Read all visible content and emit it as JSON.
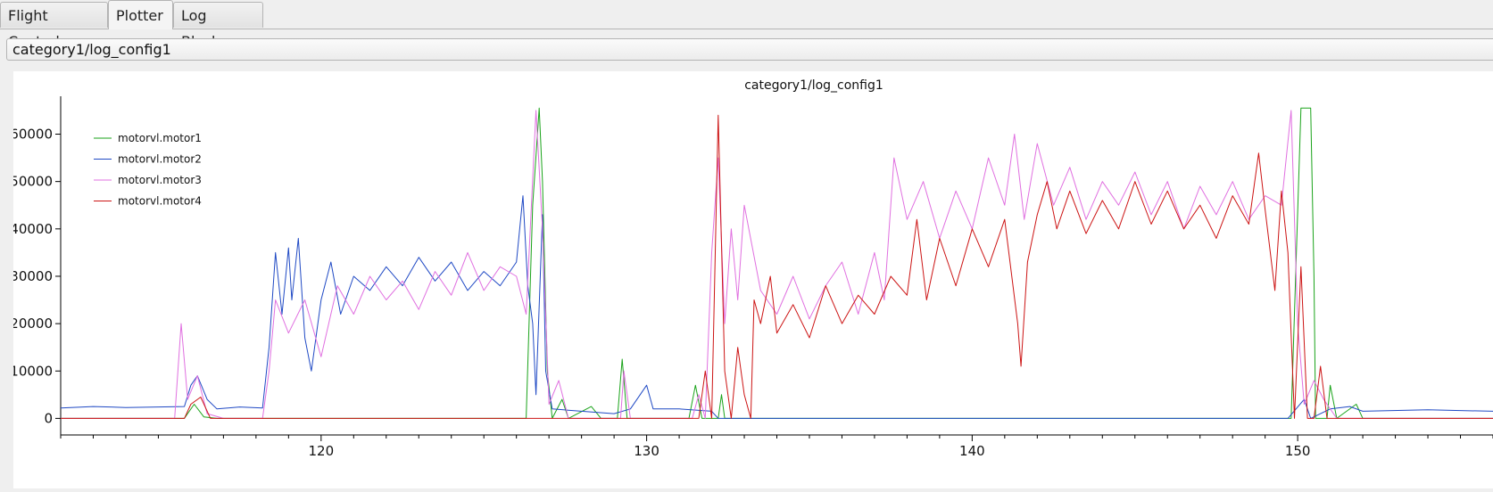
{
  "tabs": [
    {
      "label": "Flight Control",
      "active": false
    },
    {
      "label": "Plotter",
      "active": true
    },
    {
      "label": "Log Blocks",
      "active": false
    }
  ],
  "selector": {
    "value": "category1/log_config1"
  },
  "chart_data": {
    "type": "line",
    "title": "category1/log_config1",
    "xlabel": "",
    "ylabel": "",
    "xlim": [
      112,
      156
    ],
    "ylim": [
      -3500,
      68000
    ],
    "x_ticks": [
      120,
      130,
      140,
      150
    ],
    "y_ticks": [
      0,
      10000,
      20000,
      30000,
      40000,
      50000,
      60000
    ],
    "legend_position": "top-left",
    "grid": false,
    "series": [
      {
        "name": "motorvl.motor1",
        "color": "#1aa31a",
        "points": [
          [
            112,
            0
          ],
          [
            115.8,
            0
          ],
          [
            116.1,
            3000
          ],
          [
            116.4,
            300
          ],
          [
            116.8,
            0
          ],
          [
            126.3,
            0
          ],
          [
            126.5,
            45000
          ],
          [
            126.7,
            65500
          ],
          [
            126.8,
            50000
          ],
          [
            126.95,
            10000
          ],
          [
            127.1,
            0
          ],
          [
            127.4,
            4000
          ],
          [
            127.6,
            0
          ],
          [
            128.3,
            2500
          ],
          [
            128.6,
            0
          ],
          [
            129.1,
            0
          ],
          [
            129.25,
            12500
          ],
          [
            129.4,
            0
          ],
          [
            131.3,
            0
          ],
          [
            131.5,
            7000
          ],
          [
            131.7,
            0
          ],
          [
            132.2,
            0
          ],
          [
            132.3,
            5000
          ],
          [
            132.4,
            0
          ],
          [
            149.8,
            0
          ],
          [
            150.1,
            65500
          ],
          [
            150.4,
            65500
          ],
          [
            150.5,
            30000
          ],
          [
            150.55,
            0
          ],
          [
            150.9,
            0
          ],
          [
            151.0,
            7000
          ],
          [
            151.2,
            0
          ],
          [
            151.8,
            3000
          ],
          [
            152.0,
            0
          ],
          [
            156,
            0
          ]
        ]
      },
      {
        "name": "motorvl.motor2",
        "color": "#1f49c4",
        "points": [
          [
            112,
            2200
          ],
          [
            113,
            2500
          ],
          [
            114,
            2300
          ],
          [
            115,
            2400
          ],
          [
            115.8,
            2500
          ],
          [
            116.0,
            7000
          ],
          [
            116.2,
            9000
          ],
          [
            116.5,
            4000
          ],
          [
            116.8,
            2000
          ],
          [
            117.5,
            2400
          ],
          [
            118.2,
            2200
          ],
          [
            118.4,
            15000
          ],
          [
            118.6,
            35000
          ],
          [
            118.8,
            22000
          ],
          [
            119.0,
            36000
          ],
          [
            119.1,
            25000
          ],
          [
            119.3,
            38000
          ],
          [
            119.5,
            17000
          ],
          [
            119.7,
            10000
          ],
          [
            120.0,
            25000
          ],
          [
            120.3,
            33000
          ],
          [
            120.6,
            22000
          ],
          [
            121.0,
            30000
          ],
          [
            121.5,
            27000
          ],
          [
            122.0,
            32000
          ],
          [
            122.5,
            28000
          ],
          [
            123.0,
            34000
          ],
          [
            123.5,
            29000
          ],
          [
            124.0,
            33000
          ],
          [
            124.5,
            27000
          ],
          [
            125.0,
            31000
          ],
          [
            125.5,
            28000
          ],
          [
            126.0,
            33000
          ],
          [
            126.2,
            47000
          ],
          [
            126.35,
            28000
          ],
          [
            126.5,
            20000
          ],
          [
            126.6,
            5000
          ],
          [
            126.8,
            43000
          ],
          [
            126.9,
            10000
          ],
          [
            127.1,
            2000
          ],
          [
            128.0,
            1500
          ],
          [
            129.0,
            1000
          ],
          [
            129.5,
            2000
          ],
          [
            130.0,
            7000
          ],
          [
            130.2,
            2000
          ],
          [
            131.0,
            2000
          ],
          [
            132.0,
            1500
          ],
          [
            132.2,
            0
          ],
          [
            149.7,
            0
          ],
          [
            150.2,
            4000
          ],
          [
            150.4,
            0
          ],
          [
            151.0,
            2000
          ],
          [
            151.6,
            2500
          ],
          [
            152,
            1500
          ],
          [
            154,
            1800
          ],
          [
            156,
            1500
          ]
        ]
      },
      {
        "name": "motorvl.motor3",
        "color": "#e070e0",
        "points": [
          [
            112,
            0
          ],
          [
            115.5,
            0
          ],
          [
            115.7,
            20000
          ],
          [
            115.9,
            4000
          ],
          [
            116.2,
            9000
          ],
          [
            116.5,
            1000
          ],
          [
            117,
            0
          ],
          [
            118.2,
            0
          ],
          [
            118.4,
            10000
          ],
          [
            118.6,
            25000
          ],
          [
            119.0,
            18000
          ],
          [
            119.5,
            25000
          ],
          [
            120.0,
            13000
          ],
          [
            120.5,
            28000
          ],
          [
            121.0,
            22000
          ],
          [
            121.5,
            30000
          ],
          [
            122.0,
            25000
          ],
          [
            122.5,
            29000
          ],
          [
            123.0,
            23000
          ],
          [
            123.5,
            31000
          ],
          [
            124.0,
            26000
          ],
          [
            124.5,
            35000
          ],
          [
            125.0,
            27000
          ],
          [
            125.5,
            32000
          ],
          [
            126.0,
            30000
          ],
          [
            126.3,
            22000
          ],
          [
            126.6,
            65000
          ],
          [
            126.8,
            40000
          ],
          [
            127.0,
            3000
          ],
          [
            127.3,
            8000
          ],
          [
            127.6,
            0
          ],
          [
            129.2,
            0
          ],
          [
            129.3,
            10000
          ],
          [
            129.5,
            0
          ],
          [
            131.4,
            0
          ],
          [
            131.6,
            5000
          ],
          [
            131.8,
            0
          ],
          [
            132.0,
            35000
          ],
          [
            132.2,
            55000
          ],
          [
            132.4,
            20000
          ],
          [
            132.6,
            40000
          ],
          [
            132.8,
            25000
          ],
          [
            133.0,
            45000
          ],
          [
            133.5,
            27000
          ],
          [
            134.0,
            22000
          ],
          [
            134.5,
            30000
          ],
          [
            135.0,
            21000
          ],
          [
            135.5,
            28000
          ],
          [
            136.0,
            33000
          ],
          [
            136.5,
            22000
          ],
          [
            137.0,
            35000
          ],
          [
            137.3,
            25000
          ],
          [
            137.6,
            55000
          ],
          [
            138.0,
            42000
          ],
          [
            138.5,
            50000
          ],
          [
            139.0,
            38000
          ],
          [
            139.5,
            48000
          ],
          [
            140.0,
            40000
          ],
          [
            140.5,
            55000
          ],
          [
            141.0,
            45000
          ],
          [
            141.3,
            60000
          ],
          [
            141.6,
            42000
          ],
          [
            142.0,
            58000
          ],
          [
            142.5,
            45000
          ],
          [
            143.0,
            53000
          ],
          [
            143.5,
            42000
          ],
          [
            144.0,
            50000
          ],
          [
            144.5,
            45000
          ],
          [
            145.0,
            52000
          ],
          [
            145.5,
            43000
          ],
          [
            146.0,
            50000
          ],
          [
            146.5,
            40000
          ],
          [
            147.0,
            49000
          ],
          [
            147.5,
            43000
          ],
          [
            148.0,
            50000
          ],
          [
            148.5,
            42000
          ],
          [
            149.0,
            47000
          ],
          [
            149.5,
            45000
          ],
          [
            149.8,
            65000
          ],
          [
            150.0,
            20000
          ],
          [
            150.2,
            3000
          ],
          [
            150.5,
            8000
          ],
          [
            150.8,
            4000
          ],
          [
            151.2,
            0
          ],
          [
            156,
            0
          ]
        ]
      },
      {
        "name": "motorvl.motor4",
        "color": "#cc1414",
        "points": [
          [
            112,
            0
          ],
          [
            115.8,
            0
          ],
          [
            116.0,
            3000
          ],
          [
            116.3,
            4500
          ],
          [
            116.6,
            0
          ],
          [
            131.6,
            0
          ],
          [
            131.8,
            10000
          ],
          [
            132.0,
            0
          ],
          [
            132.2,
            64000
          ],
          [
            132.4,
            10000
          ],
          [
            132.6,
            0
          ],
          [
            132.8,
            15000
          ],
          [
            133.0,
            5000
          ],
          [
            133.2,
            0
          ],
          [
            133.3,
            25000
          ],
          [
            133.5,
            20000
          ],
          [
            133.8,
            30000
          ],
          [
            134.0,
            18000
          ],
          [
            134.5,
            24000
          ],
          [
            135.0,
            17000
          ],
          [
            135.5,
            28000
          ],
          [
            136.0,
            20000
          ],
          [
            136.5,
            26000
          ],
          [
            137.0,
            22000
          ],
          [
            137.5,
            30000
          ],
          [
            138.0,
            26000
          ],
          [
            138.3,
            42000
          ],
          [
            138.6,
            25000
          ],
          [
            139.0,
            38000
          ],
          [
            139.5,
            28000
          ],
          [
            140.0,
            40000
          ],
          [
            140.5,
            32000
          ],
          [
            141.0,
            42000
          ],
          [
            141.4,
            20000
          ],
          [
            141.5,
            11000
          ],
          [
            141.7,
            33000
          ],
          [
            142.0,
            43000
          ],
          [
            142.3,
            50000
          ],
          [
            142.6,
            40000
          ],
          [
            143.0,
            48000
          ],
          [
            143.5,
            39000
          ],
          [
            144.0,
            46000
          ],
          [
            144.5,
            40000
          ],
          [
            145.0,
            50000
          ],
          [
            145.5,
            41000
          ],
          [
            146.0,
            48000
          ],
          [
            146.5,
            40000
          ],
          [
            147.0,
            45000
          ],
          [
            147.5,
            38000
          ],
          [
            148.0,
            47000
          ],
          [
            148.5,
            41000
          ],
          [
            148.8,
            56000
          ],
          [
            149.0,
            44000
          ],
          [
            149.3,
            27000
          ],
          [
            149.5,
            48000
          ],
          [
            149.7,
            35000
          ],
          [
            149.9,
            0
          ],
          [
            150.1,
            32000
          ],
          [
            150.3,
            0
          ],
          [
            150.5,
            0
          ],
          [
            150.7,
            11000
          ],
          [
            150.9,
            0
          ],
          [
            156,
            0
          ]
        ]
      }
    ]
  }
}
